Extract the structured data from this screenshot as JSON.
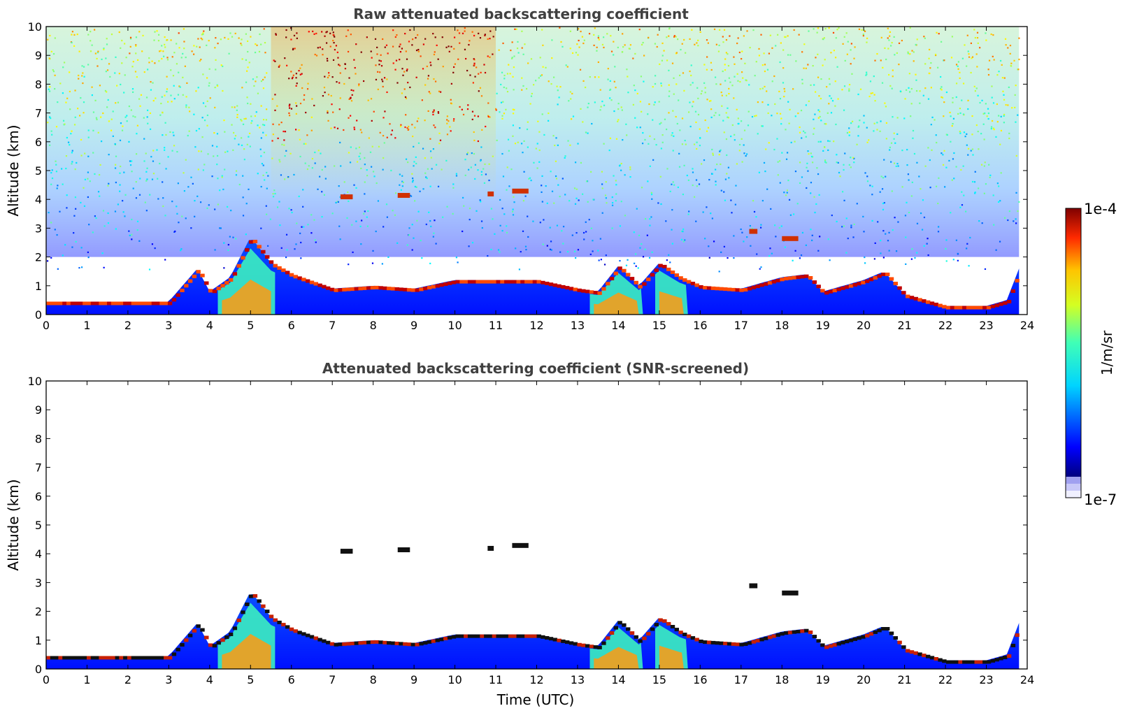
{
  "chart_data": [
    {
      "type": "heatmap",
      "title": "Raw attenuated backscattering coefficient",
      "xlabel": "",
      "ylabel": "Altitude (km)",
      "xlim": [
        0,
        24
      ],
      "ylim": [
        0,
        10
      ],
      "x_ticks": [
        0,
        1,
        2,
        3,
        4,
        5,
        6,
        7,
        8,
        9,
        10,
        11,
        12,
        13,
        14,
        15,
        16,
        17,
        18,
        19,
        20,
        21,
        22,
        23,
        24
      ],
      "y_ticks": [
        0,
        1,
        2,
        3,
        4,
        5,
        6,
        7,
        8,
        9,
        10
      ],
      "layer_top_km": {
        "time": [
          0,
          1,
          2,
          3,
          3.7,
          4,
          4.5,
          5,
          5.5,
          6,
          7,
          8,
          9,
          10,
          11,
          12,
          13,
          13.5,
          14,
          14.5,
          15,
          15.5,
          16,
          17,
          17.5,
          18,
          18.6,
          19,
          20,
          20.5,
          21,
          22,
          23,
          23.5,
          23.8
        ],
        "altitude": [
          0.45,
          0.45,
          0.45,
          0.45,
          1.6,
          0.8,
          1.3,
          2.7,
          1.8,
          1.4,
          0.9,
          1.0,
          0.9,
          1.2,
          1.2,
          1.2,
          0.9,
          0.8,
          1.7,
          1.0,
          1.8,
          1.3,
          1.0,
          0.9,
          1.1,
          1.3,
          1.4,
          0.8,
          1.2,
          1.5,
          0.7,
          0.3,
          0.3,
          0.5,
          1.6
        ]
      },
      "elevated_layers": [
        {
          "time": [
            7.2,
            7.5
          ],
          "altitude_km": 4.1
        },
        {
          "time": [
            8.6,
            8.9
          ],
          "altitude_km": 4.15
        },
        {
          "time": [
            10.8,
            10.95
          ],
          "altitude_km": 4.2
        },
        {
          "time": [
            11.4,
            11.8
          ],
          "altitude_km": 4.3
        },
        {
          "time": [
            17.2,
            17.4
          ],
          "altitude_km": 2.9
        },
        {
          "time": [
            18.0,
            18.4
          ],
          "altitude_km": 2.65
        }
      ]
    },
    {
      "type": "heatmap",
      "title": "Attenuated backscattering coefficient (SNR-screened)",
      "xlabel": "Time (UTC)",
      "ylabel": "Altitude (km)",
      "xlim": [
        0,
        24
      ],
      "ylim": [
        0,
        10
      ],
      "x_ticks": [
        0,
        1,
        2,
        3,
        4,
        5,
        6,
        7,
        8,
        9,
        10,
        11,
        12,
        13,
        14,
        15,
        16,
        17,
        18,
        19,
        20,
        21,
        22,
        23,
        24
      ],
      "y_ticks": [
        0,
        1,
        2,
        3,
        4,
        5,
        6,
        7,
        8,
        9,
        10
      ]
    }
  ],
  "colorbar": {
    "min_label": "1e-7",
    "max_label": "1e-4",
    "unit_label": "1/m/sr",
    "scale": "log",
    "range": [
      1e-07,
      0.0001
    ],
    "colormap": "jet",
    "low_colors": [
      "#f0f0ff",
      "#c8c8f8",
      "#a0a0f0"
    ]
  }
}
